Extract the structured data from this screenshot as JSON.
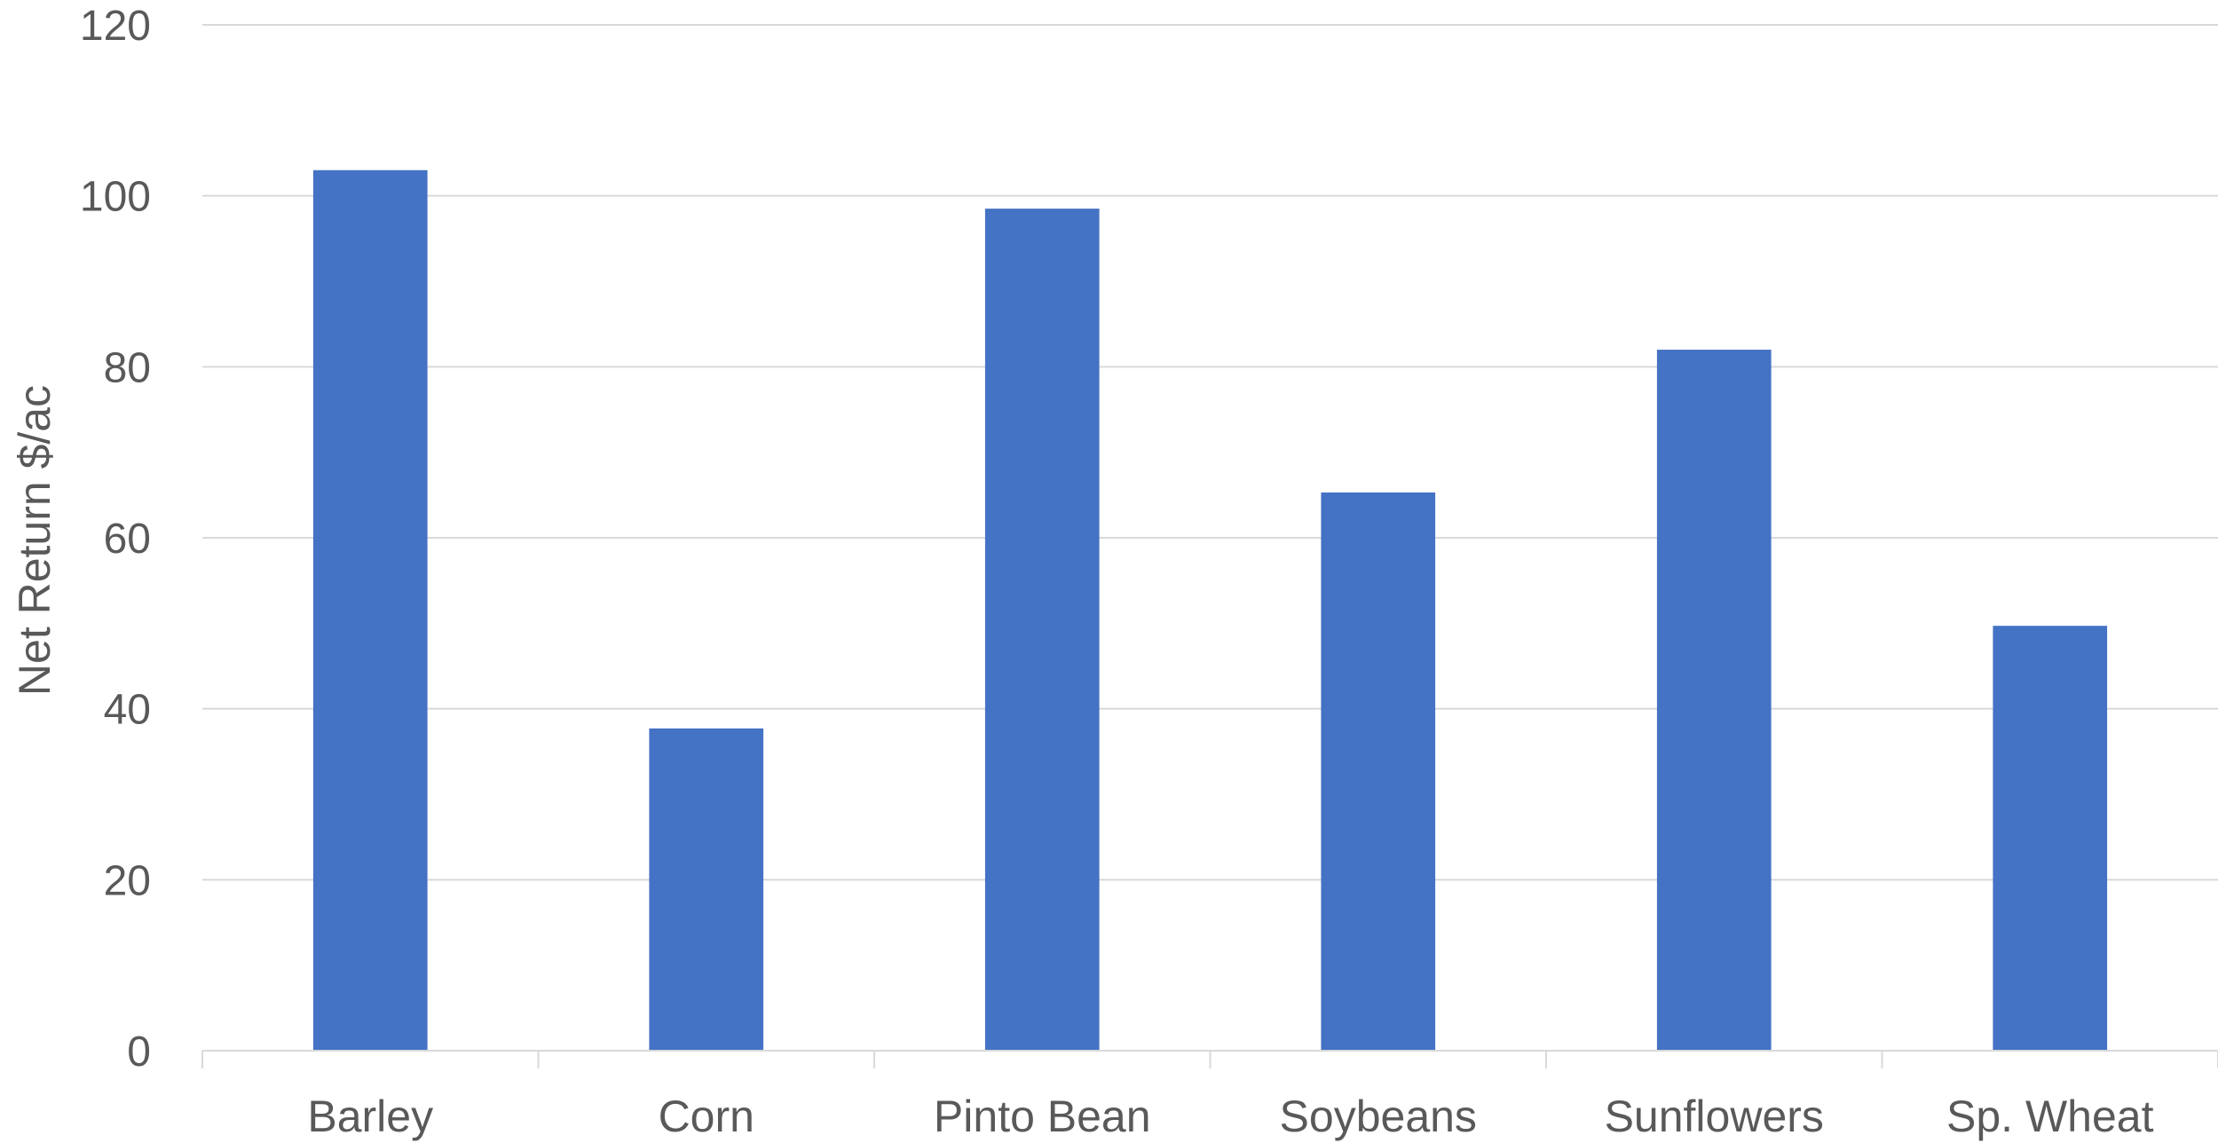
{
  "chart_data": {
    "type": "bar",
    "categories": [
      "Barley",
      "Corn",
      "Pinto Bean",
      "Soybeans",
      "Sunflowers",
      "Sp. Wheat"
    ],
    "values": [
      103,
      37.7,
      98.5,
      65.3,
      82,
      49.7
    ],
    "title": "",
    "xlabel": "",
    "ylabel": "Net Return $/ac",
    "ylim": [
      0,
      120
    ],
    "yticks": [
      0,
      20,
      40,
      60,
      80,
      100,
      120
    ],
    "grid": true,
    "legend": "none",
    "colors": {
      "bar": "#4472C4",
      "grid": "#d9d9d9",
      "axis": "#d9d9d9",
      "text": "#595959"
    }
  }
}
